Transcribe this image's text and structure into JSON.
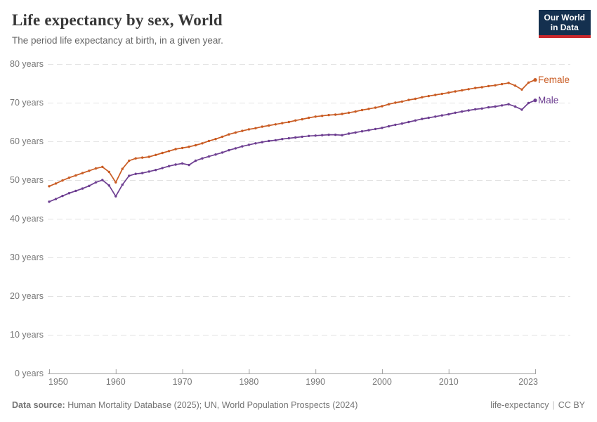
{
  "header": {
    "title": "Life expectancy by sex, World",
    "subtitle": "The period life expectancy at birth, in a given year."
  },
  "logo": {
    "line1": "Our World",
    "line2": "in Data"
  },
  "chart_data": {
    "type": "line",
    "title": "Life expectancy by sex, World",
    "xlabel": "",
    "ylabel": "",
    "xlim": [
      1950,
      2023
    ],
    "ylim": [
      0,
      80
    ],
    "xticks": [
      1950,
      1960,
      1970,
      1980,
      1990,
      2000,
      2010,
      2023
    ],
    "yticks": [
      0,
      10,
      20,
      30,
      40,
      50,
      60,
      70,
      80
    ],
    "ytick_suffix": " years",
    "grid": "horizontal-dashed",
    "legend_position": "line-end-labels",
    "x": [
      1950,
      1951,
      1952,
      1953,
      1954,
      1955,
      1956,
      1957,
      1958,
      1959,
      1960,
      1961,
      1962,
      1963,
      1964,
      1965,
      1966,
      1967,
      1968,
      1969,
      1970,
      1971,
      1972,
      1973,
      1974,
      1975,
      1976,
      1977,
      1978,
      1979,
      1980,
      1981,
      1982,
      1983,
      1984,
      1985,
      1986,
      1987,
      1988,
      1989,
      1990,
      1991,
      1992,
      1993,
      1994,
      1995,
      1996,
      1997,
      1998,
      1999,
      2000,
      2001,
      2002,
      2003,
      2004,
      2005,
      2006,
      2007,
      2008,
      2009,
      2010,
      2011,
      2012,
      2013,
      2014,
      2015,
      2016,
      2017,
      2018,
      2019,
      2020,
      2021,
      2022,
      2023
    ],
    "series": [
      {
        "name": "Female",
        "color": "#C95B22",
        "values": [
          48.4,
          49.1,
          49.9,
          50.6,
          51.2,
          51.8,
          52.4,
          53.0,
          53.4,
          52.1,
          49.4,
          52.9,
          55.0,
          55.6,
          55.8,
          56.0,
          56.5,
          57.0,
          57.5,
          58.0,
          58.3,
          58.6,
          59.0,
          59.5,
          60.1,
          60.6,
          61.2,
          61.8,
          62.3,
          62.7,
          63.1,
          63.4,
          63.8,
          64.1,
          64.4,
          64.7,
          65.0,
          65.4,
          65.7,
          66.1,
          66.4,
          66.6,
          66.8,
          66.9,
          67.1,
          67.4,
          67.7,
          68.1,
          68.4,
          68.7,
          69.1,
          69.6,
          70.0,
          70.3,
          70.7,
          71.0,
          71.4,
          71.7,
          72.0,
          72.3,
          72.6,
          72.9,
          73.2,
          73.5,
          73.8,
          74.0,
          74.3,
          74.5,
          74.8,
          75.1,
          74.4,
          73.4,
          75.2,
          75.9
        ]
      },
      {
        "name": "Male",
        "color": "#6D3E91",
        "values": [
          44.4,
          45.1,
          45.9,
          46.6,
          47.2,
          47.8,
          48.5,
          49.4,
          50.0,
          48.6,
          45.8,
          48.8,
          51.1,
          51.6,
          51.8,
          52.2,
          52.6,
          53.1,
          53.6,
          54.0,
          54.3,
          53.9,
          55.0,
          55.6,
          56.1,
          56.6,
          57.1,
          57.7,
          58.2,
          58.7,
          59.1,
          59.5,
          59.8,
          60.1,
          60.3,
          60.6,
          60.8,
          61.0,
          61.2,
          61.4,
          61.5,
          61.6,
          61.7,
          61.7,
          61.6,
          62.0,
          62.3,
          62.6,
          62.9,
          63.2,
          63.5,
          63.9,
          64.3,
          64.6,
          65.0,
          65.4,
          65.8,
          66.1,
          66.4,
          66.7,
          67.0,
          67.4,
          67.7,
          68.0,
          68.3,
          68.5,
          68.8,
          69.0,
          69.3,
          69.6,
          69.0,
          68.2,
          69.9,
          70.6
        ]
      }
    ]
  },
  "footer": {
    "source_label": "Data source:",
    "source_text": " Human Mortality Database (2025); UN, World Population Prospects (2024)",
    "slug": "life-expectancy",
    "separator": "|",
    "license": "CC BY"
  },
  "colors": {
    "female": "#C95B22",
    "male": "#6D3E91",
    "grid": "#E2E2E2",
    "axis": "#A3A3A3",
    "tick_label": "#787878",
    "logo_bg": "#14304F",
    "logo_accent": "#C9282D"
  }
}
